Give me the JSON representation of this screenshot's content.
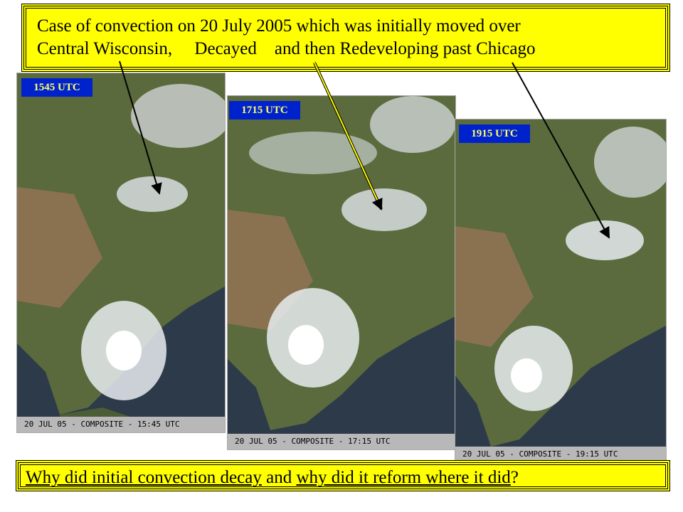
{
  "title": {
    "lines": [
      "Case of convection on 20 July 2005 which was initially moved over",
      "Central Wisconsin,     Decayed    and then Redeveloping past Chicago"
    ]
  },
  "panels": [
    {
      "label": "1545 UTC",
      "caption": "20 JUL 05 - COMPOSITE - 15:45 UTC"
    },
    {
      "label": "1715 UTC",
      "caption": "20 JUL 05 - COMPOSITE - 17:15 UTC"
    },
    {
      "label": "1915 UTC",
      "caption": "20 JUL 05 - COMPOSITE - 19:15 UTC"
    }
  ],
  "footer": {
    "segments": [
      "Why did initial convection decay",
      " and ",
      "why did it reform where it did",
      "?"
    ]
  }
}
